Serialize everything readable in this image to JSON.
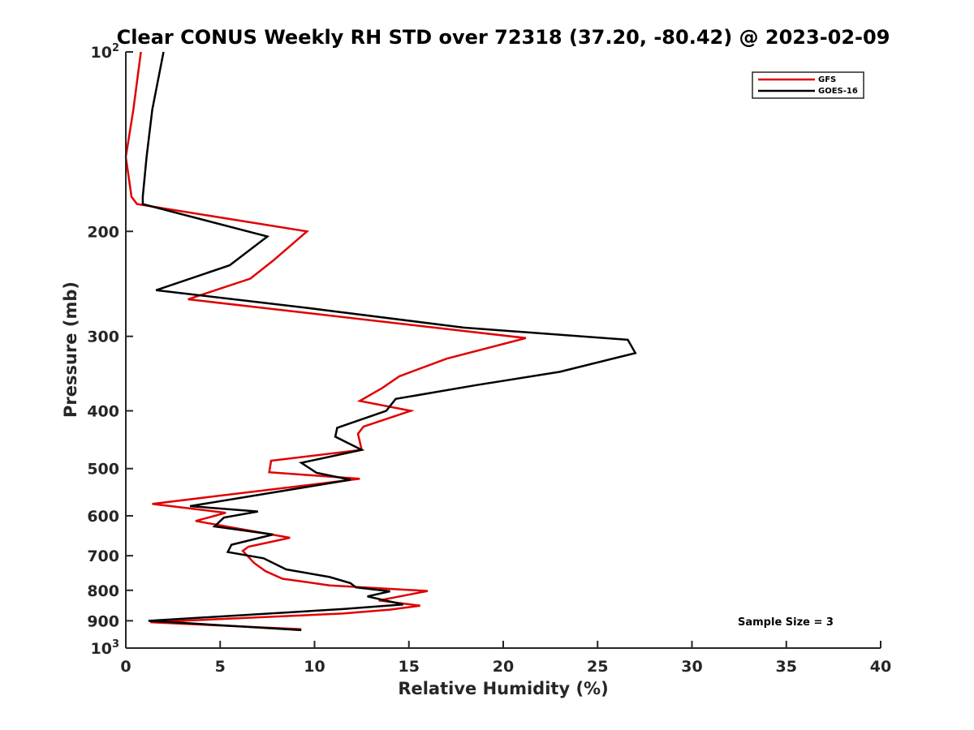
{
  "chart_data": {
    "type": "line",
    "title": "Clear CONUS Weekly RH STD over 72318 (37.20, -80.42) @ 2023-02-09",
    "xlabel": "Relative Humidity (%)",
    "ylabel": "Pressure (mb)",
    "xlim": [
      0,
      40
    ],
    "ylim": [
      100,
      1000
    ],
    "y_scale": "log",
    "y_reversed": true,
    "x_ticks": [
      "0",
      "5",
      "10",
      "15",
      "20",
      "25",
      "30",
      "35",
      "40"
    ],
    "y_ticks": [
      {
        "value": 100,
        "base": "10",
        "exp": "2"
      },
      {
        "value": 200,
        "label": "200"
      },
      {
        "value": 300,
        "label": "300"
      },
      {
        "value": 400,
        "label": "400"
      },
      {
        "value": 500,
        "label": "500"
      },
      {
        "value": 600,
        "label": "600"
      },
      {
        "value": 700,
        "label": "700"
      },
      {
        "value": 800,
        "label": "800"
      },
      {
        "value": 900,
        "label": "900"
      },
      {
        "value": 1000,
        "base": "10",
        "exp": "3"
      }
    ],
    "grid": false,
    "legend_position": "top-right",
    "annotation": "Sample Size = 3",
    "series": [
      {
        "name": "GFS",
        "color": "#e00000",
        "points": [
          [
            0.8,
            100
          ],
          [
            0.4,
            125
          ],
          [
            0,
            150
          ],
          [
            0.3,
            175
          ],
          [
            0.6,
            180
          ],
          [
            9.6,
            200
          ],
          [
            7.8,
            224
          ],
          [
            6.6,
            240
          ],
          [
            3.3,
            260
          ],
          [
            21.2,
            302
          ],
          [
            17,
            327
          ],
          [
            14.5,
            350
          ],
          [
            13.6,
            366
          ],
          [
            12.4,
            385
          ],
          [
            15.1,
            400
          ],
          [
            12.6,
            425
          ],
          [
            12.3,
            437
          ],
          [
            12.5,
            465
          ],
          [
            7.7,
            485
          ],
          [
            7.6,
            507
          ],
          [
            12.4,
            520
          ],
          [
            1.4,
            573
          ],
          [
            5.3,
            593
          ],
          [
            3.7,
            612
          ],
          [
            8.7,
            653
          ],
          [
            6.5,
            676
          ],
          [
            6.2,
            687
          ],
          [
            6.8,
            720
          ],
          [
            7.4,
            743
          ],
          [
            8.3,
            765
          ],
          [
            10.8,
            785
          ],
          [
            16,
            802
          ],
          [
            13.4,
            832
          ],
          [
            15.6,
            849
          ],
          [
            14,
            862
          ],
          [
            11.5,
            875
          ],
          [
            1.3,
            905
          ],
          [
            9.3,
            930
          ]
        ]
      },
      {
        "name": "GOES-16",
        "color": "#000000",
        "points": [
          [
            2,
            100
          ],
          [
            1.4,
            125
          ],
          [
            1.1,
            150
          ],
          [
            0.9,
            175
          ],
          [
            0.9,
            180
          ],
          [
            7.5,
            204
          ],
          [
            5.5,
            228
          ],
          [
            1.6,
            251
          ],
          [
            9.3,
            268
          ],
          [
            17.9,
            290
          ],
          [
            26.6,
            304
          ],
          [
            27,
            320
          ],
          [
            23,
            344
          ],
          [
            18.6,
            362
          ],
          [
            14.3,
            382
          ],
          [
            13.8,
            400
          ],
          [
            11.2,
            427
          ],
          [
            11.1,
            442
          ],
          [
            12.5,
            465
          ],
          [
            9.3,
            489
          ],
          [
            10.1,
            508
          ],
          [
            11.9,
            522
          ],
          [
            3.4,
            578
          ],
          [
            7,
            590
          ],
          [
            5.2,
            604
          ],
          [
            4.7,
            625
          ],
          [
            7.8,
            645
          ],
          [
            5.6,
            671
          ],
          [
            5.4,
            690
          ],
          [
            7.3,
            707
          ],
          [
            8.5,
            738
          ],
          [
            10.8,
            760
          ],
          [
            11.9,
            778
          ],
          [
            12.2,
            791
          ],
          [
            14,
            803
          ],
          [
            12.8,
            819
          ],
          [
            14.7,
            845
          ],
          [
            11.5,
            860
          ],
          [
            1.2,
            900
          ],
          [
            9.3,
            933
          ]
        ]
      }
    ]
  }
}
